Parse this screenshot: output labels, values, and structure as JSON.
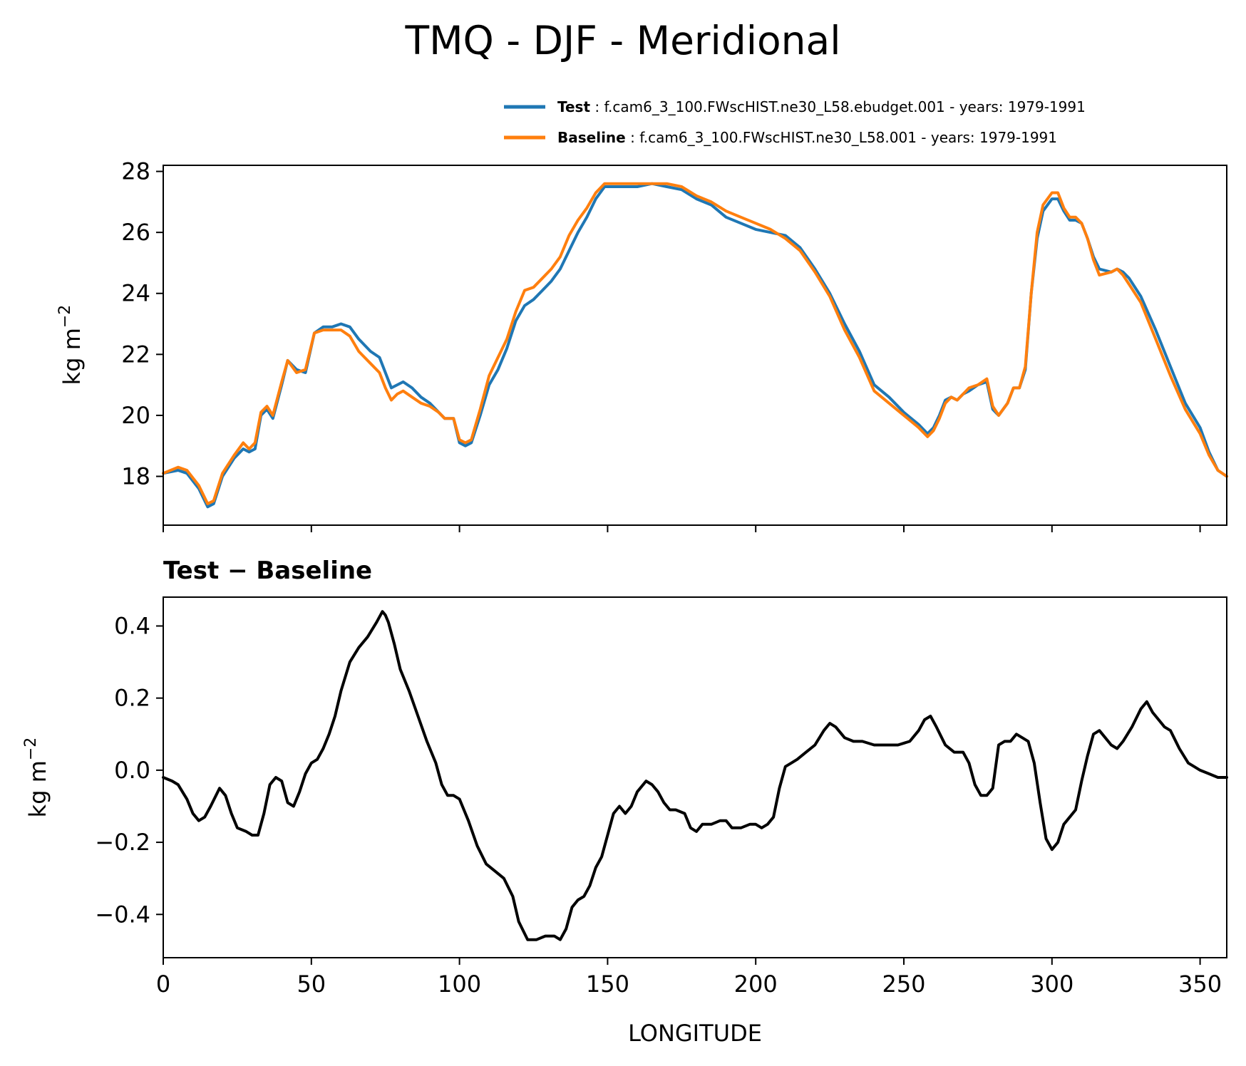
{
  "figure_title": "TMQ - DJF - Meridional",
  "chart_data": [
    {
      "type": "line",
      "ylabel": "kg m",
      "ylabel_exponent": "−2",
      "xlim": [
        0,
        359
      ],
      "ylim": [
        16.4,
        28.2
      ],
      "yticks": [
        18,
        20,
        22,
        24,
        26,
        28
      ],
      "xticks": [
        0,
        50,
        100,
        150,
        200,
        250,
        300,
        350
      ],
      "show_xtick_labels": false,
      "legend": {
        "placement": "above-right",
        "entries": [
          {
            "name": "Test",
            "sep": " : ",
            "desc": "f.cam6_3_100.FWscHIST.ne30_L58.ebudget.001 - years: 1979-1991",
            "color": "#1f77b4"
          },
          {
            "name": "Baseline",
            "sep": " : ",
            "desc": "f.cam6_3_100.FWscHIST.ne30_L58.001 - years: 1979-1991",
            "color": "#ff7f0e"
          }
        ]
      },
      "series": [
        {
          "name": "Test",
          "color": "#1f77b4",
          "x": [
            0,
            5,
            8,
            12,
            14,
            15,
            17,
            20,
            24,
            27,
            29,
            31,
            33,
            35,
            37,
            40,
            42,
            45,
            48,
            51,
            54,
            57,
            60,
            63,
            66,
            70,
            73,
            75,
            77,
            79,
            81,
            84,
            87,
            90,
            93,
            95,
            98,
            100,
            102,
            104,
            107,
            110,
            113,
            116,
            119,
            122,
            125,
            128,
            131,
            134,
            137,
            140,
            143,
            146,
            149,
            152,
            155,
            160,
            165,
            170,
            175,
            180,
            185,
            190,
            195,
            200,
            205,
            210,
            215,
            220,
            225,
            230,
            235,
            240,
            245,
            250,
            255,
            258,
            260,
            262,
            264,
            266,
            268,
            270,
            272,
            275,
            278,
            280,
            282,
            285,
            287,
            289,
            291,
            293,
            295,
            297,
            300,
            302,
            304,
            306,
            308,
            310,
            312,
            314,
            316,
            320,
            322,
            324,
            326,
            330,
            335,
            340,
            345,
            350,
            353,
            356,
            359
          ],
          "y": [
            18.1,
            18.2,
            18.1,
            17.6,
            17.2,
            17.0,
            17.1,
            18.0,
            18.6,
            18.9,
            18.8,
            18.9,
            20.0,
            20.2,
            19.9,
            21.0,
            21.8,
            21.5,
            21.4,
            22.7,
            22.9,
            22.9,
            23.0,
            22.9,
            22.5,
            22.1,
            21.9,
            21.4,
            20.9,
            21.0,
            21.1,
            20.9,
            20.6,
            20.4,
            20.1,
            19.9,
            19.9,
            19.1,
            19.0,
            19.1,
            20.0,
            21.0,
            21.5,
            22.2,
            23.1,
            23.6,
            23.8,
            24.1,
            24.4,
            24.8,
            25.4,
            26.0,
            26.5,
            27.1,
            27.5,
            27.5,
            27.5,
            27.5,
            27.6,
            27.5,
            27.4,
            27.1,
            26.9,
            26.5,
            26.3,
            26.1,
            26.0,
            25.9,
            25.5,
            24.8,
            24.0,
            23.0,
            22.1,
            21.0,
            20.6,
            20.1,
            19.7,
            19.4,
            19.6,
            20.0,
            20.5,
            20.6,
            20.5,
            20.7,
            20.8,
            21.0,
            21.1,
            20.2,
            20.0,
            20.4,
            20.9,
            20.9,
            21.5,
            24.0,
            25.8,
            26.7,
            27.1,
            27.1,
            26.7,
            26.4,
            26.4,
            26.3,
            25.8,
            25.2,
            24.8,
            24.7,
            24.8,
            24.7,
            24.5,
            23.9,
            22.8,
            21.6,
            20.4,
            19.6,
            18.8,
            18.2,
            18.0
          ]
        },
        {
          "name": "Baseline",
          "color": "#ff7f0e",
          "x": [
            0,
            5,
            8,
            12,
            14,
            15,
            17,
            20,
            24,
            27,
            29,
            31,
            33,
            35,
            37,
            40,
            42,
            45,
            48,
            51,
            54,
            57,
            60,
            63,
            66,
            70,
            73,
            75,
            77,
            79,
            81,
            84,
            87,
            90,
            93,
            95,
            98,
            100,
            102,
            104,
            107,
            110,
            113,
            116,
            119,
            122,
            125,
            128,
            131,
            134,
            137,
            140,
            143,
            146,
            149,
            152,
            155,
            160,
            165,
            170,
            175,
            180,
            185,
            190,
            195,
            200,
            205,
            210,
            215,
            220,
            225,
            230,
            235,
            240,
            245,
            250,
            255,
            258,
            260,
            262,
            264,
            266,
            268,
            270,
            272,
            275,
            278,
            280,
            282,
            285,
            287,
            289,
            291,
            293,
            295,
            297,
            300,
            302,
            304,
            306,
            308,
            310,
            312,
            314,
            316,
            320,
            322,
            324,
            326,
            330,
            335,
            340,
            345,
            350,
            353,
            356,
            359
          ],
          "y": [
            18.1,
            18.3,
            18.2,
            17.7,
            17.3,
            17.1,
            17.2,
            18.1,
            18.7,
            19.1,
            18.9,
            19.1,
            20.1,
            20.3,
            20.0,
            21.1,
            21.8,
            21.4,
            21.5,
            22.7,
            22.8,
            22.8,
            22.8,
            22.6,
            22.1,
            21.7,
            21.4,
            20.9,
            20.5,
            20.7,
            20.8,
            20.6,
            20.4,
            20.3,
            20.1,
            19.9,
            19.9,
            19.2,
            19.1,
            19.2,
            20.2,
            21.3,
            21.9,
            22.5,
            23.4,
            24.1,
            24.2,
            24.5,
            24.8,
            25.2,
            25.9,
            26.4,
            26.8,
            27.3,
            27.6,
            27.6,
            27.6,
            27.6,
            27.6,
            27.6,
            27.5,
            27.2,
            27.0,
            26.7,
            26.5,
            26.3,
            26.1,
            25.8,
            25.4,
            24.7,
            23.9,
            22.8,
            21.9,
            20.8,
            20.4,
            20.0,
            19.6,
            19.3,
            19.5,
            19.9,
            20.4,
            20.6,
            20.5,
            20.7,
            20.9,
            21.0,
            21.2,
            20.3,
            20.0,
            20.4,
            20.9,
            20.9,
            21.6,
            24.0,
            26.0,
            26.9,
            27.3,
            27.3,
            26.8,
            26.5,
            26.5,
            26.3,
            25.8,
            25.1,
            24.6,
            24.7,
            24.8,
            24.6,
            24.3,
            23.7,
            22.5,
            21.3,
            20.2,
            19.4,
            18.7,
            18.2,
            18.0
          ]
        }
      ]
    },
    {
      "type": "line",
      "title": "Test − Baseline",
      "xlabel": "LONGITUDE",
      "ylabel": "kg m",
      "ylabel_exponent": "−2",
      "xlim": [
        0,
        359
      ],
      "ylim": [
        -0.52,
        0.48
      ],
      "yticks": [
        -0.4,
        -0.2,
        0.0,
        0.2,
        0.4
      ],
      "ytick_labels": [
        "−0.4",
        "−0.2",
        "0.0",
        "0.2",
        "0.4"
      ],
      "xticks": [
        0,
        50,
        100,
        150,
        200,
        250,
        300,
        350
      ],
      "xtick_labels": [
        "0",
        "50",
        "100",
        "150",
        "200",
        "250",
        "300",
        "350"
      ],
      "series": [
        {
          "name": "Test − Baseline",
          "color": "#000000",
          "x": [
            0,
            3,
            5,
            8,
            10,
            12,
            14,
            16,
            19,
            21,
            23,
            25,
            28,
            30,
            32,
            34,
            36,
            38,
            40,
            42,
            44,
            46,
            48,
            50,
            52,
            54,
            56,
            58,
            60,
            63,
            66,
            69,
            72,
            74,
            75,
            76,
            78,
            80,
            83,
            86,
            89,
            92,
            94,
            96,
            98,
            100,
            103,
            106,
            109,
            112,
            115,
            118,
            120,
            123,
            126,
            129,
            132,
            134,
            136,
            138,
            140,
            142,
            144,
            146,
            148,
            150,
            152,
            154,
            156,
            158,
            160,
            163,
            165,
            167,
            169,
            171,
            173,
            176,
            178,
            180,
            182,
            185,
            188,
            190,
            192,
            195,
            198,
            200,
            202,
            204,
            206,
            208,
            210,
            212,
            214,
            217,
            220,
            223,
            225,
            227,
            230,
            233,
            236,
            240,
            244,
            248,
            252,
            255,
            257,
            259,
            261,
            264,
            267,
            270,
            272,
            274,
            276,
            278,
            280,
            282,
            284,
            286,
            288,
            290,
            292,
            294,
            296,
            298,
            300,
            302,
            304,
            306,
            308,
            310,
            312,
            314,
            316,
            318,
            320,
            322,
            324,
            327,
            330,
            332,
            334,
            336,
            338,
            340,
            343,
            346,
            348,
            350,
            353,
            356,
            359
          ],
          "y": [
            -0.02,
            -0.03,
            -0.04,
            -0.08,
            -0.12,
            -0.14,
            -0.13,
            -0.1,
            -0.05,
            -0.07,
            -0.12,
            -0.16,
            -0.17,
            -0.18,
            -0.18,
            -0.12,
            -0.04,
            -0.02,
            -0.03,
            -0.09,
            -0.1,
            -0.06,
            -0.01,
            0.02,
            0.03,
            0.06,
            0.1,
            0.15,
            0.22,
            0.3,
            0.34,
            0.37,
            0.41,
            0.44,
            0.43,
            0.41,
            0.35,
            0.28,
            0.22,
            0.15,
            0.08,
            0.02,
            -0.04,
            -0.07,
            -0.07,
            -0.08,
            -0.14,
            -0.21,
            -0.26,
            -0.28,
            -0.3,
            -0.35,
            -0.42,
            -0.47,
            -0.47,
            -0.46,
            -0.46,
            -0.47,
            -0.44,
            -0.38,
            -0.36,
            -0.35,
            -0.32,
            -0.27,
            -0.24,
            -0.18,
            -0.12,
            -0.1,
            -0.12,
            -0.1,
            -0.06,
            -0.03,
            -0.04,
            -0.06,
            -0.09,
            -0.11,
            -0.11,
            -0.12,
            -0.16,
            -0.17,
            -0.15,
            -0.15,
            -0.14,
            -0.14,
            -0.16,
            -0.16,
            -0.15,
            -0.15,
            -0.16,
            -0.15,
            -0.13,
            -0.05,
            0.01,
            0.02,
            0.03,
            0.05,
            0.07,
            0.11,
            0.13,
            0.12,
            0.09,
            0.08,
            0.08,
            0.07,
            0.07,
            0.07,
            0.08,
            0.11,
            0.14,
            0.15,
            0.12,
            0.07,
            0.05,
            0.05,
            0.02,
            -0.04,
            -0.07,
            -0.07,
            -0.05,
            0.07,
            0.08,
            0.08,
            0.1,
            0.09,
            0.08,
            0.02,
            -0.09,
            -0.19,
            -0.22,
            -0.2,
            -0.15,
            -0.13,
            -0.11,
            -0.03,
            0.04,
            0.1,
            0.11,
            0.09,
            0.07,
            0.06,
            0.08,
            0.12,
            0.17,
            0.19,
            0.16,
            0.14,
            0.12,
            0.11,
            0.06,
            0.02,
            0.01,
            0.0,
            -0.01,
            -0.02,
            -0.02
          ]
        }
      ]
    }
  ]
}
